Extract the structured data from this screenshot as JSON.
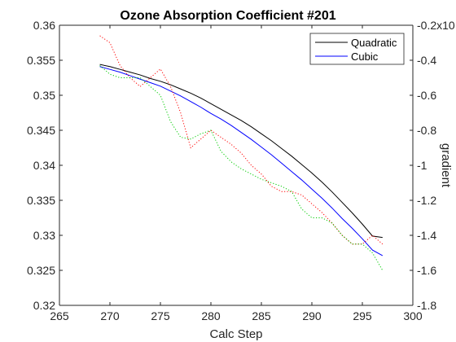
{
  "chart_data": {
    "type": "line",
    "title": "Ozone Absorption Coefficient  #201",
    "xlabel": "Calc Step",
    "ylabel": "",
    "y2label": "gradient",
    "xlim": [
      265,
      300
    ],
    "ylim": [
      0.32,
      0.36
    ],
    "y2lim": [
      -1.8,
      -0.2
    ],
    "x_ticks": [
      "265",
      "270",
      "275",
      "280",
      "285",
      "290",
      "295",
      "300"
    ],
    "y_ticks": [
      "0.32",
      "0.325",
      "0.33",
      "0.335",
      "0.34",
      "0.345",
      "0.35",
      "0.355",
      "0.36"
    ],
    "y2_ticks": [
      "-1.8",
      "-1.6",
      "-1.4",
      "-1.2",
      "-1",
      "-0.8",
      "-0.6",
      "-0.4",
      "-0.2x10"
    ],
    "grid": false,
    "legend_position": "top-right",
    "colors": {
      "quadratic": "#000000",
      "cubic": "#0000ff",
      "quadratic_gradient": "#ff0000",
      "cubic_gradient": "#00cc00",
      "axis": "#262626"
    },
    "series": [
      {
        "name": "Quadratic",
        "axis": "left",
        "style": "solid",
        "x": [
          269,
          270,
          271,
          272,
          273,
          274,
          275,
          276,
          277,
          278,
          279,
          280,
          281,
          282,
          283,
          284,
          285,
          286,
          287,
          288,
          289,
          290,
          291,
          292,
          293,
          294,
          295,
          296,
          297
        ],
        "y": [
          0.3544,
          0.3541,
          0.3537,
          0.3533,
          0.3529,
          0.3524,
          0.352,
          0.3515,
          0.3509,
          0.3503,
          0.3496,
          0.3488,
          0.348,
          0.3472,
          0.3464,
          0.3455,
          0.3445,
          0.3435,
          0.3424,
          0.3413,
          0.3401,
          0.3389,
          0.3376,
          0.3362,
          0.3347,
          0.3332,
          0.3316,
          0.3299,
          0.3297
        ]
      },
      {
        "name": "Cubic",
        "axis": "left",
        "style": "solid",
        "x": [
          269,
          270,
          271,
          272,
          273,
          274,
          275,
          276,
          277,
          278,
          279,
          280,
          281,
          282,
          283,
          284,
          285,
          286,
          287,
          288,
          289,
          290,
          291,
          292,
          293,
          294,
          295,
          296,
          297
        ],
        "y": [
          0.3541,
          0.3537,
          0.3533,
          0.3528,
          0.3523,
          0.3518,
          0.3513,
          0.3506,
          0.3499,
          0.3491,
          0.3483,
          0.3474,
          0.3466,
          0.3457,
          0.3447,
          0.3437,
          0.3426,
          0.3415,
          0.3403,
          0.3391,
          0.3379,
          0.3366,
          0.3353,
          0.3339,
          0.3324,
          0.331,
          0.3295,
          0.3279,
          0.3271
        ]
      },
      {
        "axis": "right",
        "style": "dotted",
        "x": [
          269,
          270,
          271,
          272,
          273,
          274,
          275,
          276,
          277,
          278,
          279,
          280,
          281,
          282,
          283,
          284,
          285,
          286,
          287,
          288,
          289,
          290,
          291,
          292,
          293,
          294,
          295,
          296,
          297
        ],
        "y": [
          -0.26,
          -0.3,
          -0.43,
          -0.5,
          -0.55,
          -0.5,
          -0.45,
          -0.55,
          -0.7,
          -0.9,
          -0.85,
          -0.8,
          -0.84,
          -0.88,
          -0.93,
          -1.0,
          -1.05,
          -1.12,
          -1.15,
          -1.15,
          -1.17,
          -1.22,
          -1.27,
          -1.33,
          -1.4,
          -1.45,
          -1.45,
          -1.4,
          -1.45
        ]
      },
      {
        "axis": "right",
        "style": "dotted",
        "x": [
          269,
          270,
          271,
          272,
          273,
          274,
          275,
          276,
          277,
          278,
          279,
          280,
          281,
          282,
          283,
          284,
          285,
          286,
          287,
          288,
          289,
          290,
          291,
          292,
          293,
          294,
          295,
          296,
          297
        ],
        "y": [
          -0.43,
          -0.48,
          -0.5,
          -0.5,
          -0.5,
          -0.55,
          -0.6,
          -0.75,
          -0.84,
          -0.85,
          -0.82,
          -0.8,
          -0.92,
          -0.98,
          -1.02,
          -1.05,
          -1.08,
          -1.1,
          -1.12,
          -1.15,
          -1.25,
          -1.3,
          -1.3,
          -1.33,
          -1.4,
          -1.45,
          -1.45,
          -1.5,
          -1.6
        ]
      }
    ]
  }
}
